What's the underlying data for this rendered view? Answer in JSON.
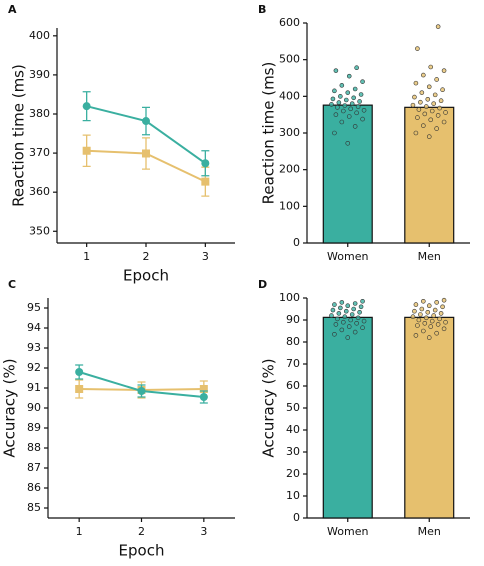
{
  "chart_data": [
    {
      "type": "line",
      "label": "A",
      "xlabel": "Epoch",
      "ylabel": "Reaction time (ms)",
      "categories": [
        "1",
        "2",
        "3"
      ],
      "ylim": [
        347,
        402
      ],
      "yticks": [
        350,
        360,
        370,
        380,
        390,
        400
      ],
      "series": [
        {
          "color": "#e6c06e",
          "marker": "square",
          "values": [
            370.6,
            369.9,
            362.7
          ],
          "errors": [
            4.0,
            4.0,
            3.7
          ]
        },
        {
          "color": "#3aafa0",
          "marker": "circle",
          "values": [
            382.0,
            378.2,
            367.4
          ],
          "errors": [
            3.7,
            3.5,
            3.2
          ]
        }
      ]
    },
    {
      "type": "bar",
      "label": "B",
      "ylabel": "Reaction time (ms)",
      "categories": [
        "Women",
        "Men"
      ],
      "values": [
        376,
        370
      ],
      "colors": [
        "#3aafa0",
        "#e6c06e"
      ],
      "ylim": [
        0,
        600
      ],
      "yticks": [
        0,
        100,
        200,
        300,
        400,
        500,
        600
      ],
      "points": [
        [
          272,
          300,
          318,
          330,
          338,
          345,
          350,
          355,
          360,
          362,
          366,
          370,
          372,
          375,
          378,
          380,
          383,
          386,
          390,
          393,
          396,
          400,
          405,
          410,
          415,
          420,
          430,
          440,
          455,
          470,
          478
        ],
        [
          290,
          300,
          312,
          320,
          330,
          336,
          342,
          348,
          352,
          356,
          360,
          364,
          368,
          372,
          376,
          380,
          384,
          388,
          392,
          398,
          404,
          410,
          418,
          426,
          436,
          446,
          458,
          470,
          480,
          530,
          590
        ]
      ]
    },
    {
      "type": "line",
      "label": "C",
      "xlabel": "Epoch",
      "ylabel": "Accuracy (%)",
      "categories": [
        "1",
        "2",
        "3"
      ],
      "ylim": [
        84.5,
        95.5
      ],
      "yticks": [
        85,
        86,
        87,
        88,
        89,
        90,
        91,
        92,
        93,
        94,
        95
      ],
      "series": [
        {
          "color": "#e6c06e",
          "marker": "square",
          "values": [
            90.95,
            90.9,
            90.95
          ],
          "errors": [
            0.45,
            0.4,
            0.4
          ]
        },
        {
          "color": "#3aafa0",
          "marker": "circle",
          "values": [
            91.8,
            90.85,
            90.55
          ],
          "errors": [
            0.35,
            0.3,
            0.3
          ]
        }
      ]
    },
    {
      "type": "bar",
      "label": "D",
      "ylabel": "Accuracy (%)",
      "categories": [
        "Women",
        "Men"
      ],
      "values": [
        91.2,
        91.2
      ],
      "colors": [
        "#3aafa0",
        "#e6c06e"
      ],
      "ylim": [
        0,
        100
      ],
      "yticks": [
        0,
        10,
        20,
        30,
        40,
        50,
        60,
        70,
        80,
        90,
        100
      ],
      "points": [
        [
          82,
          83.5,
          84.5,
          85.5,
          86.5,
          87,
          88,
          88.5,
          89,
          89.5,
          90,
          90.5,
          91,
          91.5,
          92,
          92.5,
          93,
          93.5,
          94,
          94.5,
          95,
          95.5,
          96,
          96.5,
          97,
          97.5,
          98,
          98.5
        ],
        [
          82,
          83,
          84,
          85,
          86,
          87,
          87.5,
          88,
          88.5,
          89,
          89.5,
          90,
          90.5,
          91,
          91.5,
          92,
          92.5,
          93,
          93.5,
          94,
          94.5,
          95,
          96,
          96.5,
          97,
          98,
          98.5,
          99
        ]
      ]
    }
  ]
}
